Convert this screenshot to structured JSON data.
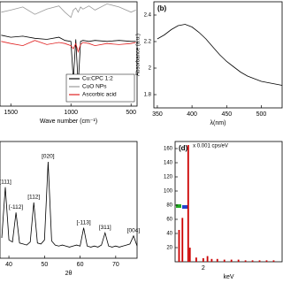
{
  "chart_data": [
    {
      "type": "line",
      "x_label": "Wave number (cm⁻¹)",
      "x": [
        1580,
        1500,
        1400,
        1300,
        1200,
        1100,
        1050,
        1000,
        980,
        960,
        940,
        920,
        900,
        850,
        800,
        700,
        600,
        500,
        460
      ],
      "xlim": [
        1590,
        450
      ],
      "xticks": [
        1500,
        1000,
        500
      ],
      "ylim": [
        0,
        100
      ],
      "legend": "lower right",
      "series": [
        {
          "name": "Cu:CPC 1:2",
          "color": "#000000",
          "values": [
            68,
            66,
            67,
            65,
            64,
            66,
            63,
            62,
            25,
            64,
            20,
            62,
            63,
            62,
            63,
            62,
            63,
            62,
            62
          ]
        },
        {
          "name": "CuO NPs",
          "color": "#999999",
          "values": [
            90,
            92,
            95,
            88,
            93,
            96,
            90,
            85,
            92,
            94,
            90,
            95,
            93,
            96,
            92,
            98,
            95,
            90,
            92
          ]
        },
        {
          "name": "Ascorbic acid",
          "color": "#e02020",
          "values": [
            62,
            60,
            58,
            63,
            59,
            61,
            60,
            58,
            55,
            60,
            52,
            59,
            61,
            60,
            58,
            60,
            59,
            60,
            61
          ]
        }
      ]
    },
    {
      "type": "line",
      "panel_label": "(b)",
      "x_label": "λ(nm)",
      "y_label": "Absorbance (a.u.)",
      "x": [
        350,
        360,
        370,
        380,
        390,
        400,
        410,
        420,
        430,
        440,
        450,
        460,
        470,
        480,
        490,
        500,
        510,
        520,
        530
      ],
      "values": [
        2.22,
        2.25,
        2.29,
        2.32,
        2.33,
        2.31,
        2.27,
        2.22,
        2.16,
        2.1,
        2.05,
        2.01,
        1.97,
        1.94,
        1.92,
        1.9,
        1.89,
        1.88,
        1.87
      ],
      "color": "#000000",
      "xlim": [
        345,
        530
      ],
      "xticks": [
        350,
        400,
        450,
        500
      ],
      "ylim": [
        1.7,
        2.5
      ],
      "yticks": [
        1.8,
        2.0,
        2.2,
        2.4
      ]
    },
    {
      "type": "line",
      "x_label": "2θ",
      "x": [
        38,
        39,
        40,
        41,
        42,
        43,
        44,
        45,
        46,
        47,
        48,
        49,
        50,
        51,
        52,
        53,
        54,
        55,
        56,
        57,
        58,
        59,
        60,
        61,
        62,
        63,
        64,
        65,
        66,
        67,
        68,
        69,
        70,
        71,
        72,
        73,
        74,
        75,
        76
      ],
      "values": [
        20,
        70,
        18,
        16,
        45,
        15,
        14,
        13,
        16,
        55,
        15,
        14,
        18,
        95,
        17,
        13,
        12,
        13,
        12,
        11,
        12,
        13,
        12,
        30,
        12,
        11,
        12,
        11,
        13,
        25,
        12,
        11,
        12,
        11,
        12,
        13,
        14,
        22,
        12
      ],
      "color": "#000000",
      "xlim": [
        37.5,
        76
      ],
      "xticks": [
        40,
        50,
        60,
        70
      ],
      "ylim": [
        0,
        115
      ],
      "peaks": [
        {
          "label": "[111]",
          "x": 39
        },
        {
          "label": "[-112]",
          "x": 42
        },
        {
          "label": "[112]",
          "x": 47
        },
        {
          "label": "[020]",
          "x": 51
        },
        {
          "label": "[-113]",
          "x": 61
        },
        {
          "label": "[311]",
          "x": 67
        },
        {
          "label": "[004]",
          "x": 75
        }
      ]
    },
    {
      "type": "bar",
      "panel_label": "(d)",
      "x_label": "keV",
      "y_label": "x 0.001 cps/eV",
      "x": [
        0.28,
        0.52,
        0.93,
        1.05,
        1.5,
        2.0,
        2.3,
        2.6,
        3.0,
        3.5,
        4.0,
        4.5,
        5.0,
        5.5,
        6.0,
        6.5,
        7.0
      ],
      "values": [
        45,
        62,
        165,
        20,
        6,
        5,
        8,
        4,
        4,
        3,
        3,
        3,
        2,
        2,
        2,
        2,
        2
      ],
      "color": "#cc0000",
      "xlim": [
        0,
        7.6
      ],
      "xticks": [
        2
      ],
      "ylim": [
        0,
        170
      ],
      "yticks": [
        20,
        40,
        60,
        80,
        100,
        120,
        140,
        160
      ]
    }
  ]
}
